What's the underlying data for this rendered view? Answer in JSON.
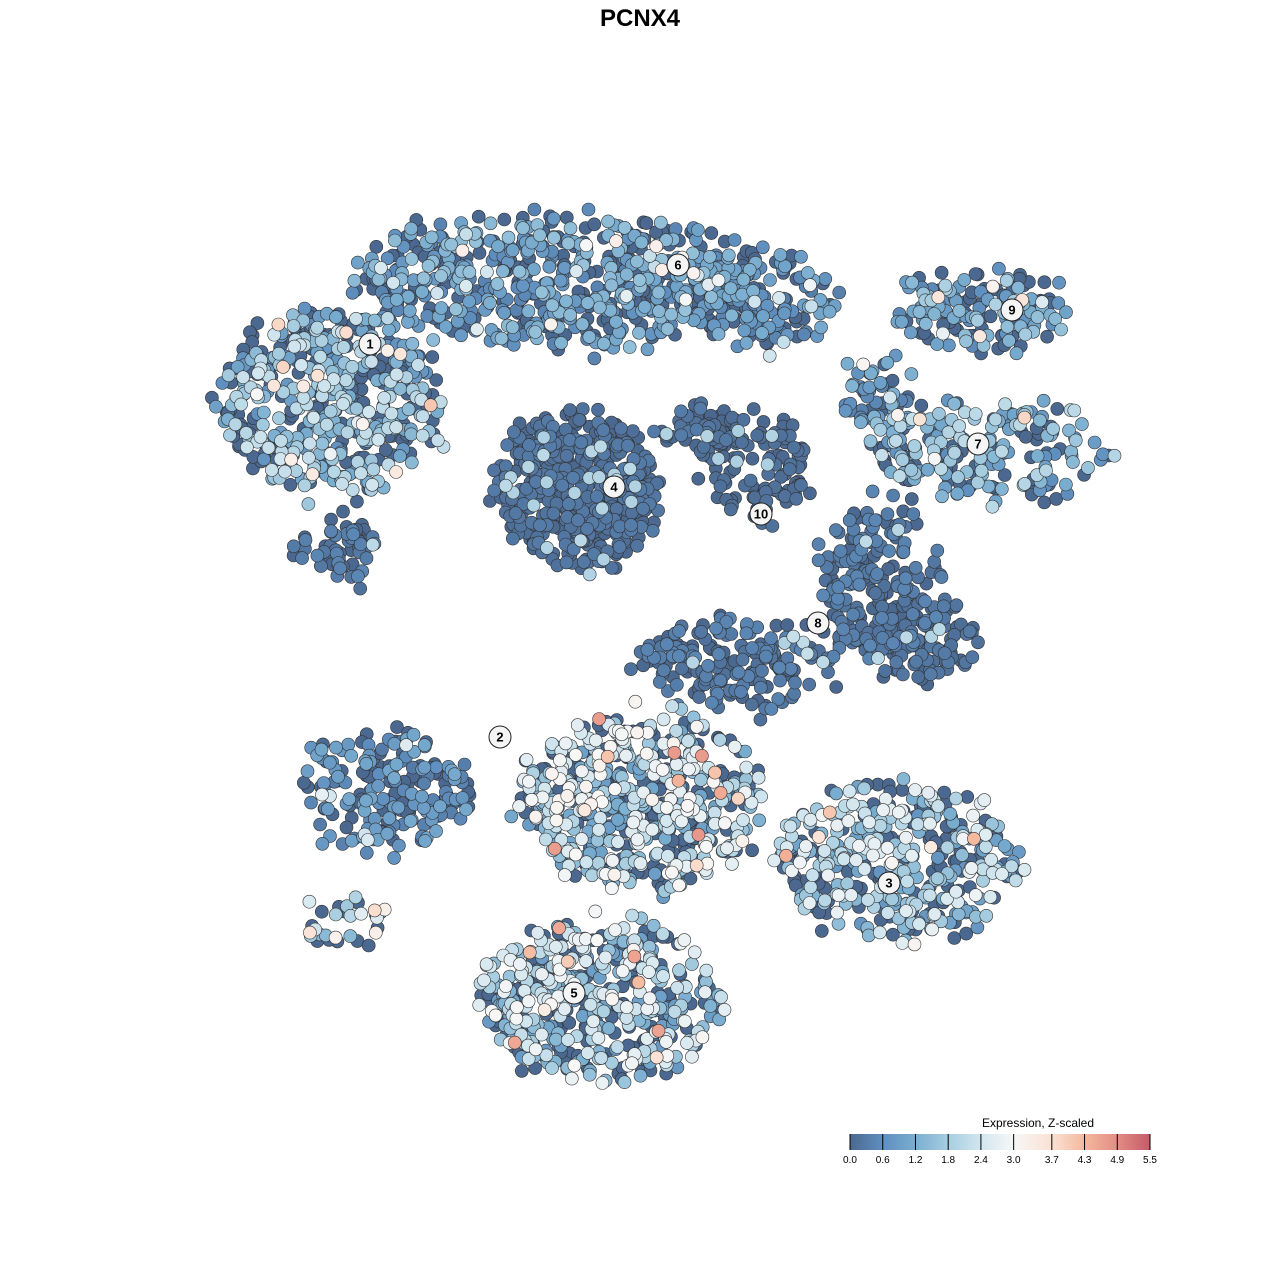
{
  "chart_data": {
    "type": "scatter",
    "title": "PCNX4",
    "xlabel": "",
    "ylabel": "",
    "grid": false,
    "axes_visible": false,
    "xlim": [
      -12.8,
      12.8
    ],
    "ylim": [
      -12.8,
      12.8
    ],
    "point_outline_color": "#333333",
    "clusters": [
      {
        "label": "1",
        "label_pos": [
          -5.4,
          5.92
        ],
        "components": [
          [
            -6.2,
            4.8,
            2.2,
            1.8,
            500,
            1.5
          ],
          [
            -6.0,
            1.8,
            0.8,
            0.6,
            60,
            0.3
          ]
        ]
      },
      {
        "label": "2",
        "label_pos": [
          -2.8,
          -1.94
        ],
        "components": [
          [
            -5.0,
            -3.0,
            1.6,
            1.2,
            200,
            0.7
          ],
          [
            -6.0,
            -5.6,
            1.0,
            0.4,
            30,
            2.5
          ]
        ]
      },
      {
        "label": "3",
        "label_pos": [
          4.98,
          -4.86
        ],
        "components": [
          [
            5.2,
            -4.4,
            2.4,
            1.6,
            400,
            1.8
          ],
          [
            0,
            -3.2,
            2.4,
            1.8,
            600,
            2.0
          ]
        ]
      },
      {
        "label": "4",
        "label_pos": [
          -0.52,
          3.06
        ],
        "components": [
          [
            -1.2,
            3.0,
            1.6,
            1.6,
            500,
            0.2
          ]
        ]
      },
      {
        "label": "5",
        "label_pos": [
          -1.32,
          -7.06
        ],
        "components": [
          [
            -0.8,
            -7.2,
            2.4,
            1.6,
            500,
            1.9
          ]
        ]
      },
      {
        "label": "6",
        "label_pos": [
          0.76,
          7.5
        ],
        "components": [
          [
            -1.6,
            7.2,
            4.0,
            1.4,
            600,
            1.0
          ],
          [
            2.4,
            6.8,
            1.6,
            1.0,
            150,
            0.8
          ]
        ]
      },
      {
        "label": "7",
        "label_pos": [
          6.76,
          3.92
        ],
        "components": [
          [
            7.0,
            3.8,
            2.4,
            1.0,
            200,
            1.4
          ],
          [
            4.8,
            4.8,
            0.8,
            0.8,
            60,
            0.9
          ]
        ]
      },
      {
        "label": "8",
        "label_pos": [
          3.56,
          0.34
        ],
        "components": [
          [
            4.8,
            1.2,
            1.2,
            1.6,
            200,
            0.3
          ],
          [
            5.6,
            0,
            1.2,
            0.8,
            100,
            0.2
          ],
          [
            2.0,
            -0.4,
            2.0,
            1.0,
            180,
            0.3
          ]
        ]
      },
      {
        "label": "9",
        "label_pos": [
          7.44,
          6.6
        ],
        "components": [
          [
            6.8,
            6.6,
            1.8,
            0.8,
            150,
            1.2
          ]
        ]
      },
      {
        "label": "10",
        "label_pos": [
          2.42,
          2.52
        ],
        "components": [
          [
            2.4,
            3.4,
            1.0,
            1.2,
            120,
            0.1
          ],
          [
            1.2,
            4.2,
            0.8,
            0.6,
            50,
            0.2
          ]
        ]
      }
    ],
    "component_fields": [
      "center_x",
      "center_y",
      "spread_x",
      "spread_y",
      "n_cells",
      "mean_expression"
    ],
    "legend": {
      "title": "Expression, Z-scaled",
      "placement": "bottom-right",
      "ticks": [
        "0.0",
        "0.6",
        "1.2",
        "1.8",
        "2.4",
        "3.0",
        "3.7",
        "4.3",
        "4.9",
        "5.5"
      ],
      "range": [
        0.0,
        5.5
      ],
      "colors": [
        {
          "v": 0.0,
          "c": "#4a6890"
        },
        {
          "v": 0.6,
          "c": "#5f8fbf"
        },
        {
          "v": 1.2,
          "c": "#7aaed0"
        },
        {
          "v": 1.8,
          "c": "#a7cde0"
        },
        {
          "v": 2.4,
          "c": "#d2e6ef"
        },
        {
          "v": 3.0,
          "c": "#f7f7f7"
        },
        {
          "v": 3.7,
          "c": "#fbe1d3"
        },
        {
          "v": 4.3,
          "c": "#f4b89d"
        },
        {
          "v": 4.9,
          "c": "#e38d84"
        },
        {
          "v": 5.5,
          "c": "#c65a6a"
        }
      ]
    }
  }
}
